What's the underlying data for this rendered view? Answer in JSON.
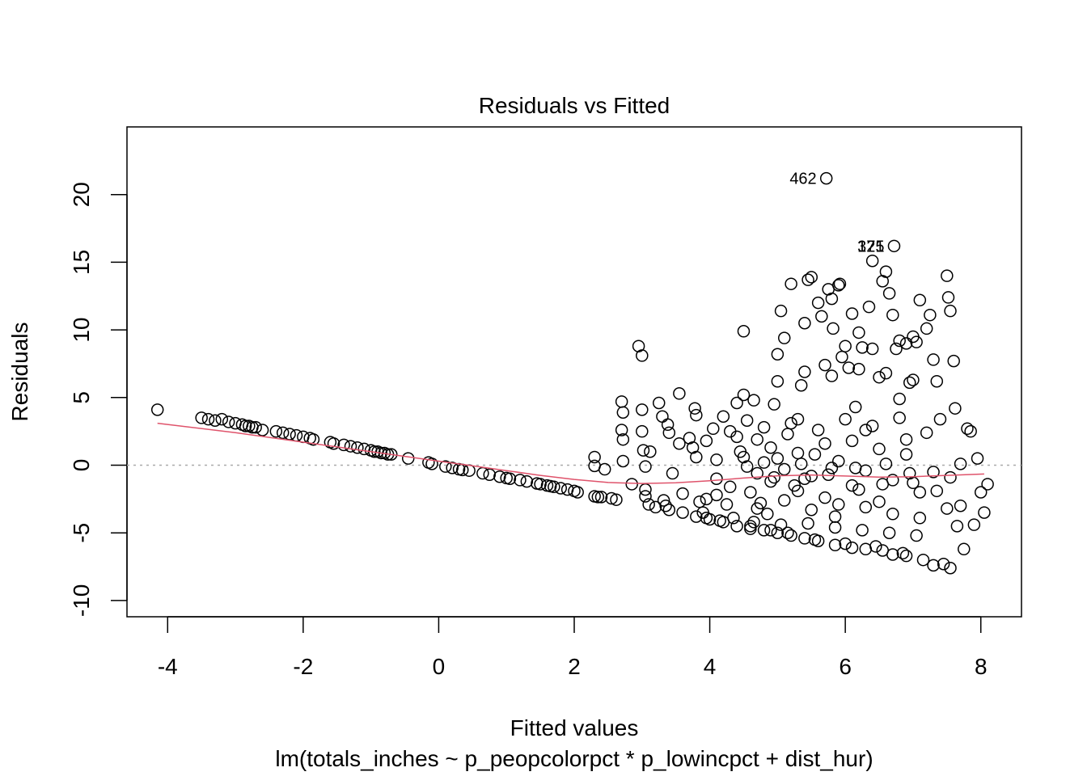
{
  "chart_data": {
    "type": "scatter",
    "title": "Residuals vs Fitted",
    "xlabel": "Fitted values",
    "subtitle": "lm(totals_inches ~ p_peopcolorpct * p_lowincpct + dist_hur)",
    "ylabel": "Residuals",
    "xlim": [
      -4.6,
      8.6
    ],
    "ylim": [
      -11.2,
      25
    ],
    "x_ticks": [
      "-4",
      "-2",
      "0",
      "2",
      "4",
      "6",
      "8"
    ],
    "y_ticks": [
      "-10",
      "-5",
      "0",
      "5",
      "10",
      "15",
      "20"
    ],
    "reference_line": {
      "y": 0,
      "style": "dotted",
      "color": "#aaaaaa"
    },
    "smoother": {
      "color": "#DF536B",
      "x": [
        -4.15,
        -3.0,
        -2.0,
        -1.0,
        -0.5,
        0.0,
        0.5,
        1.0,
        1.5,
        2.0,
        2.5,
        3.0,
        3.5,
        4.0,
        4.5,
        5.0,
        5.5,
        6.0,
        6.5,
        7.0,
        7.5,
        8.05
      ],
      "y": [
        3.1,
        2.4,
        1.7,
        1.0,
        0.65,
        0.3,
        -0.05,
        -0.4,
        -0.75,
        -1.05,
        -1.28,
        -1.35,
        -1.3,
        -1.15,
        -0.95,
        -0.78,
        -0.72,
        -0.8,
        -0.88,
        -0.85,
        -0.75,
        -0.65
      ]
    },
    "labeled_points": [
      {
        "label": "462",
        "x": 5.72,
        "y": 21.2
      },
      {
        "label": "375",
        "x": 6.72,
        "y": 16.2
      },
      {
        "label": "121",
        "x": 6.72,
        "y": 16.2
      }
    ],
    "series": [
      {
        "points": [
          [
            -4.15,
            4.1
          ],
          [
            -3.5,
            3.5
          ],
          [
            -3.4,
            3.4
          ],
          [
            -3.3,
            3.3
          ],
          [
            -3.2,
            3.4
          ],
          [
            -3.1,
            3.2
          ],
          [
            -3.0,
            3.1
          ],
          [
            -2.9,
            3.0
          ],
          [
            -2.85,
            2.9
          ],
          [
            -2.8,
            2.9
          ],
          [
            -2.75,
            2.8
          ],
          [
            -2.7,
            2.8
          ],
          [
            -2.6,
            2.6
          ],
          [
            -2.4,
            2.5
          ],
          [
            -2.3,
            2.4
          ],
          [
            -2.2,
            2.3
          ],
          [
            -2.1,
            2.2
          ],
          [
            -2.0,
            2.1
          ],
          [
            -1.9,
            2.0
          ],
          [
            -1.85,
            1.9
          ],
          [
            -1.6,
            1.7
          ],
          [
            -1.55,
            1.6
          ],
          [
            -1.4,
            1.5
          ],
          [
            -1.3,
            1.4
          ],
          [
            -1.2,
            1.3
          ],
          [
            -1.1,
            1.2
          ],
          [
            -1.0,
            1.1
          ],
          [
            -0.95,
            1.0
          ],
          [
            -0.9,
            1.0
          ],
          [
            -0.85,
            0.9
          ],
          [
            -0.8,
            0.9
          ],
          [
            -0.75,
            0.8
          ],
          [
            -0.7,
            0.8
          ],
          [
            -0.45,
            0.5
          ],
          [
            -0.15,
            0.2
          ],
          [
            -0.1,
            0.1
          ],
          [
            0.1,
            -0.1
          ],
          [
            0.2,
            -0.2
          ],
          [
            0.3,
            -0.3
          ],
          [
            0.35,
            -0.35
          ],
          [
            0.45,
            -0.4
          ],
          [
            0.65,
            -0.6
          ],
          [
            0.75,
            -0.7
          ],
          [
            0.9,
            -0.85
          ],
          [
            1.0,
            -0.95
          ],
          [
            1.05,
            -1.0
          ],
          [
            1.2,
            -1.1
          ],
          [
            1.3,
            -1.2
          ],
          [
            1.45,
            -1.35
          ],
          [
            1.5,
            -1.4
          ],
          [
            1.6,
            -1.5
          ],
          [
            1.65,
            -1.55
          ],
          [
            1.7,
            -1.6
          ],
          [
            1.8,
            -1.7
          ],
          [
            1.9,
            -1.8
          ],
          [
            2.0,
            -1.9
          ],
          [
            2.05,
            -2.0
          ],
          [
            2.3,
            -2.3
          ],
          [
            2.35,
            -2.35
          ],
          [
            2.4,
            -2.35
          ],
          [
            2.55,
            -2.45
          ],
          [
            2.62,
            -2.55
          ],
          [
            2.3,
            0.6
          ],
          [
            2.3,
            -0.05
          ],
          [
            2.45,
            -0.3
          ],
          [
            2.7,
            4.7
          ],
          [
            2.72,
            3.9
          ],
          [
            2.7,
            2.6
          ],
          [
            2.72,
            1.9
          ],
          [
            2.72,
            0.3
          ],
          [
            2.85,
            -1.4
          ],
          [
            2.95,
            8.8
          ],
          [
            3.0,
            8.1
          ],
          [
            3.0,
            4.1
          ],
          [
            3.0,
            2.5
          ],
          [
            3.02,
            1.1
          ],
          [
            3.05,
            -0.1
          ],
          [
            3.05,
            -1.8
          ],
          [
            3.05,
            -2.3
          ],
          [
            3.1,
            -2.9
          ],
          [
            3.12,
            1.0
          ],
          [
            3.25,
            4.6
          ],
          [
            3.3,
            3.6
          ],
          [
            3.32,
            -2.6
          ],
          [
            3.35,
            -3.0
          ],
          [
            3.38,
            3.0
          ],
          [
            3.4,
            2.4
          ],
          [
            3.45,
            -0.6
          ],
          [
            3.55,
            5.3
          ],
          [
            3.55,
            1.6
          ],
          [
            3.6,
            -2.1
          ],
          [
            3.7,
            2.0
          ],
          [
            3.75,
            1.3
          ],
          [
            3.78,
            4.2
          ],
          [
            3.8,
            3.7
          ],
          [
            3.8,
            0.6
          ],
          [
            3.85,
            -2.7
          ],
          [
            3.9,
            -3.5
          ],
          [
            3.95,
            -3.9
          ],
          [
            3.95,
            1.8
          ],
          [
            4.05,
            2.7
          ],
          [
            4.1,
            -2.2
          ],
          [
            4.1,
            0.4
          ],
          [
            4.15,
            -4.1
          ],
          [
            4.2,
            3.6
          ],
          [
            4.3,
            2.5
          ],
          [
            4.4,
            4.6
          ],
          [
            4.45,
            1.0
          ],
          [
            4.5,
            9.9
          ],
          [
            4.5,
            5.2
          ],
          [
            4.55,
            3.3
          ],
          [
            4.6,
            -4.5
          ],
          [
            4.65,
            4.8
          ],
          [
            4.7,
            1.9
          ],
          [
            4.75,
            -2.8
          ],
          [
            4.8,
            0.2
          ],
          [
            4.85,
            -3.6
          ],
          [
            4.9,
            -4.8
          ],
          [
            4.95,
            4.5
          ],
          [
            5.0,
            8.2
          ],
          [
            5.05,
            11.4
          ],
          [
            5.1,
            9.4
          ],
          [
            5.15,
            -5.0
          ],
          [
            5.15,
            2.3
          ],
          [
            5.2,
            13.4
          ],
          [
            5.25,
            -1.5
          ],
          [
            5.3,
            3.4
          ],
          [
            5.35,
            5.9
          ],
          [
            5.4,
            10.5
          ],
          [
            5.45,
            13.7
          ],
          [
            5.5,
            13.9
          ],
          [
            5.55,
            0.8
          ],
          [
            5.55,
            -5.5
          ],
          [
            5.6,
            12.0
          ],
          [
            5.65,
            11.0
          ],
          [
            5.7,
            7.4
          ],
          [
            5.72,
            21.2
          ],
          [
            5.75,
            13.0
          ],
          [
            5.8,
            12.3
          ],
          [
            5.82,
            10.1
          ],
          [
            5.85,
            -3.8
          ],
          [
            5.9,
            13.3
          ],
          [
            5.92,
            13.4
          ],
          [
            5.95,
            8.0
          ],
          [
            6.0,
            -5.8
          ],
          [
            6.05,
            7.2
          ],
          [
            6.1,
            11.2
          ],
          [
            6.15,
            4.3
          ],
          [
            6.2,
            9.8
          ],
          [
            6.25,
            8.7
          ],
          [
            6.3,
            2.6
          ],
          [
            6.35,
            11.7
          ],
          [
            6.4,
            15.1
          ],
          [
            6.45,
            -6.0
          ],
          [
            6.5,
            6.5
          ],
          [
            6.55,
            13.6
          ],
          [
            6.6,
            14.3
          ],
          [
            6.65,
            12.7
          ],
          [
            6.7,
            11.1
          ],
          [
            6.72,
            16.2
          ],
          [
            6.75,
            8.6
          ],
          [
            6.8,
            4.9
          ],
          [
            6.85,
            -6.5
          ],
          [
            6.9,
            9.0
          ],
          [
            6.95,
            6.1
          ],
          [
            7.0,
            9.5
          ],
          [
            7.05,
            9.1
          ],
          [
            7.1,
            12.2
          ],
          [
            7.15,
            -7.0
          ],
          [
            7.2,
            10.1
          ],
          [
            7.25,
            11.1
          ],
          [
            7.3,
            7.8
          ],
          [
            7.35,
            6.2
          ],
          [
            7.4,
            3.4
          ],
          [
            7.45,
            -7.3
          ],
          [
            7.5,
            14.0
          ],
          [
            7.52,
            12.4
          ],
          [
            7.55,
            11.4
          ],
          [
            7.6,
            7.7
          ],
          [
            7.62,
            4.2
          ],
          [
            7.65,
            -4.5
          ],
          [
            7.7,
            -3.0
          ],
          [
            7.75,
            -6.2
          ],
          [
            7.8,
            2.7
          ],
          [
            7.85,
            2.5
          ],
          [
            7.9,
            -4.4
          ],
          [
            7.95,
            0.5
          ],
          [
            8.0,
            -2.0
          ],
          [
            8.05,
            -3.5
          ],
          [
            8.1,
            -1.4
          ],
          [
            7.55,
            -7.6
          ],
          [
            7.3,
            -7.4
          ],
          [
            6.9,
            -6.7
          ],
          [
            6.7,
            -6.6
          ],
          [
            6.55,
            -6.3
          ],
          [
            6.3,
            -6.2
          ],
          [
            6.1,
            -6.1
          ],
          [
            5.85,
            -5.9
          ],
          [
            5.6,
            -5.6
          ],
          [
            5.4,
            -5.4
          ],
          [
            5.2,
            -5.2
          ],
          [
            5.0,
            -5.0
          ],
          [
            4.8,
            -4.8
          ],
          [
            4.6,
            -4.7
          ],
          [
            4.4,
            -4.5
          ],
          [
            4.2,
            -4.2
          ],
          [
            4.0,
            -4.0
          ],
          [
            3.8,
            -3.8
          ],
          [
            3.6,
            -3.5
          ],
          [
            3.4,
            -3.3
          ],
          [
            3.2,
            -3.1
          ],
          [
            4.7,
            -0.6
          ],
          [
            4.9,
            -1.2
          ],
          [
            5.1,
            -0.3
          ],
          [
            5.3,
            -1.9
          ],
          [
            5.5,
            -0.8
          ],
          [
            5.7,
            -2.4
          ],
          [
            5.9,
            0.3
          ],
          [
            6.1,
            -1.5
          ],
          [
            6.3,
            -0.4
          ],
          [
            6.5,
            -2.7
          ],
          [
            6.7,
            -1.1
          ],
          [
            6.9,
            0.8
          ],
          [
            7.1,
            -2.0
          ],
          [
            7.3,
            -0.5
          ],
          [
            7.5,
            -3.2
          ],
          [
            4.3,
            -1.6
          ],
          [
            4.5,
            0.6
          ],
          [
            4.7,
            -3.2
          ],
          [
            4.9,
            1.3
          ],
          [
            5.1,
            -2.6
          ],
          [
            5.3,
            0.9
          ],
          [
            5.5,
            -3.3
          ],
          [
            5.7,
            1.6
          ],
          [
            5.9,
            -2.9
          ],
          [
            6.1,
            1.8
          ],
          [
            6.3,
            -3.1
          ],
          [
            6.5,
            1.2
          ],
          [
            6.7,
            -3.6
          ],
          [
            6.9,
            1.9
          ],
          [
            7.1,
            -3.9
          ],
          [
            4.1,
            -1.0
          ],
          [
            4.6,
            -2.0
          ],
          [
            5.0,
            0.5
          ],
          [
            5.4,
            -1.0
          ],
          [
            5.8,
            -0.2
          ],
          [
            6.2,
            -1.8
          ],
          [
            6.6,
            0.1
          ],
          [
            7.0,
            -1.3
          ],
          [
            4.4,
            2.1
          ],
          [
            4.8,
            2.8
          ],
          [
            5.2,
            3.1
          ],
          [
            5.6,
            2.6
          ],
          [
            6.0,
            3.4
          ],
          [
            6.4,
            2.9
          ],
          [
            6.8,
            3.5
          ],
          [
            7.2,
            2.4
          ],
          [
            5.0,
            6.2
          ],
          [
            5.4,
            6.9
          ],
          [
            5.8,
            6.6
          ],
          [
            6.2,
            7.1
          ],
          [
            6.6,
            6.8
          ],
          [
            7.0,
            6.3
          ],
          [
            6.0,
            8.8
          ],
          [
            6.4,
            8.6
          ],
          [
            6.8,
            9.2
          ],
          [
            4.35,
            -3.9
          ],
          [
            4.65,
            -4.2
          ],
          [
            5.05,
            -4.4
          ],
          [
            5.45,
            -4.3
          ],
          [
            5.85,
            -4.6
          ],
          [
            6.25,
            -4.8
          ],
          [
            6.65,
            -5.0
          ],
          [
            7.05,
            -5.2
          ],
          [
            3.95,
            -2.5
          ],
          [
            4.25,
            -2.9
          ],
          [
            4.55,
            -0.1
          ],
          [
            4.95,
            -0.9
          ],
          [
            5.35,
            0.1
          ],
          [
            5.75,
            -0.7
          ],
          [
            6.15,
            -0.2
          ],
          [
            6.55,
            -1.4
          ],
          [
            6.95,
            -0.6
          ],
          [
            7.35,
            -1.9
          ],
          [
            7.55,
            -0.9
          ],
          [
            7.7,
            0.1
          ]
        ]
      }
    ]
  }
}
